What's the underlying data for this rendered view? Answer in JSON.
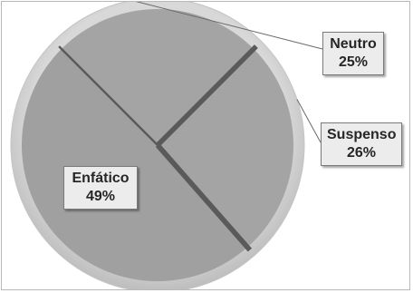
{
  "chart_data": {
    "type": "pie",
    "title": "",
    "start_angle_deg": 315,
    "direction": "clockwise",
    "legend": "none",
    "slices": [
      {
        "label": "Neutro",
        "value": 25,
        "value_label": "25%",
        "color": "#a4a4a4"
      },
      {
        "label": "Suspenso",
        "value": 26,
        "value_label": "26%",
        "color": "#a4a4a4"
      },
      {
        "label": "Enfático",
        "value": 49,
        "value_label": "49%",
        "color": "#a0a0a0"
      }
    ],
    "separator_color": "#5a5a5a",
    "rim_color": "#d8d8d8"
  }
}
